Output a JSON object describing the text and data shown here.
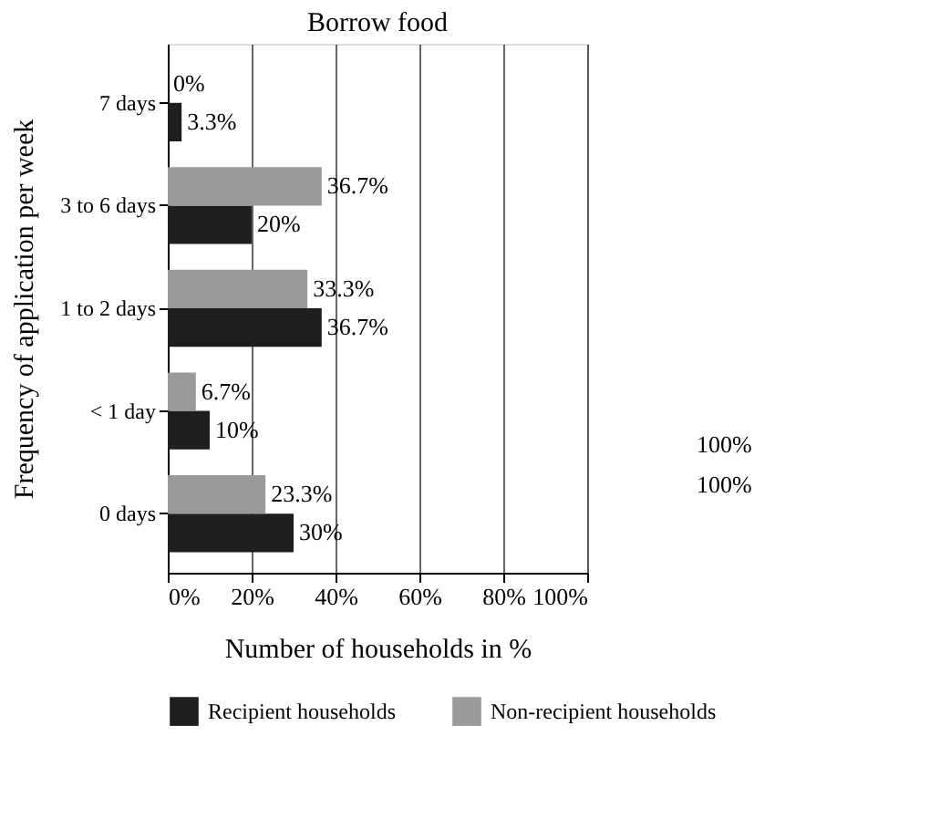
{
  "chart_data": {
    "type": "bar",
    "orientation": "horizontal",
    "title": "Borrow food",
    "xlabel": "Number of households in %",
    "ylabel": "Frequency of application per week",
    "categories": [
      "7 days",
      "3 to 6 days",
      "1 to 2 days",
      "< 1 day",
      "0 days"
    ],
    "series": [
      {
        "name": "Recipient households",
        "color": "#1e1e1e",
        "values": [
          3.3,
          20,
          36.7,
          10,
          30
        ],
        "value_labels": [
          "3.3%",
          "20%",
          "36.7%",
          "10%",
          "30%"
        ]
      },
      {
        "name": "Non-recipient households",
        "color": "#9a9a9a",
        "values": [
          0,
          36.7,
          33.3,
          6.7,
          23.3
        ],
        "value_labels": [
          "0%",
          "36.7%",
          "33.3%",
          "6.7%",
          "23.3%"
        ]
      }
    ],
    "xlim": [
      0,
      100
    ],
    "xticks": [
      {
        "value": 0,
        "label": "0%"
      },
      {
        "value": 20,
        "label": "20%"
      },
      {
        "value": 40,
        "label": "40%"
      },
      {
        "value": 60,
        "label": "60%"
      },
      {
        "value": 80,
        "label": "80%"
      },
      {
        "value": 100,
        "label": "100%"
      }
    ],
    "grid": "x",
    "legend": "bottom",
    "annotations": [
      "100%",
      "100%"
    ]
  }
}
